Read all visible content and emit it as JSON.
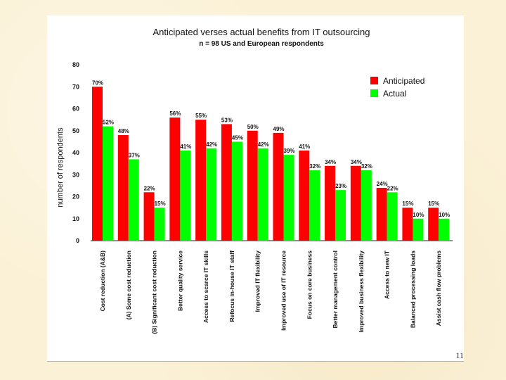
{
  "page_number": "11",
  "chart_data": {
    "type": "bar",
    "title": "Anticipated verses actual benefits from IT outsourcing",
    "subtitle": "n = 98 US and European respondents",
    "ylabel": "number of respondents",
    "xlabel": "",
    "ylim": [
      0,
      80
    ],
    "yticks": [
      "0",
      "10",
      "20",
      "30",
      "40",
      "50",
      "60",
      "70",
      "80"
    ],
    "legend_position": "top-right",
    "colors": {
      "anticipated": "#ff0000",
      "actual": "#00ff00"
    },
    "categories": [
      "Cost reduction (A&B)",
      "(A) Some cost reduction",
      "(B) Significant cost reduction",
      "Better quality service",
      "Access to scarce IT skills",
      "Refocus in-house IT staff",
      "Improved IT flexibility",
      "Improved use of IT resource",
      "Focus on core business",
      "Better management control",
      "Improved business flexibility",
      "Access to new IT",
      "Balanced processing loads",
      "Assist cash flow problems"
    ],
    "series": [
      {
        "name": "Anticipated",
        "values": [
          70,
          48,
          22,
          56,
          55,
          53,
          50,
          49,
          41,
          34,
          34,
          24,
          15,
          15
        ],
        "labels": [
          "70%",
          "48%",
          "22%",
          "56%",
          "55%",
          "53%",
          "50%",
          "49%",
          "41%",
          "34%",
          "34%",
          "24%",
          "15%",
          "15%"
        ]
      },
      {
        "name": "Actual",
        "values": [
          52,
          37,
          15,
          41,
          42,
          45,
          42,
          39,
          32,
          23,
          32,
          22,
          10,
          10
        ],
        "labels": [
          "52%",
          "37%",
          "15%",
          "41%",
          "42%",
          "45%",
          "42%",
          "39%",
          "32%",
          "23%",
          "32%",
          "22%",
          "10%",
          "10%"
        ]
      }
    ]
  }
}
